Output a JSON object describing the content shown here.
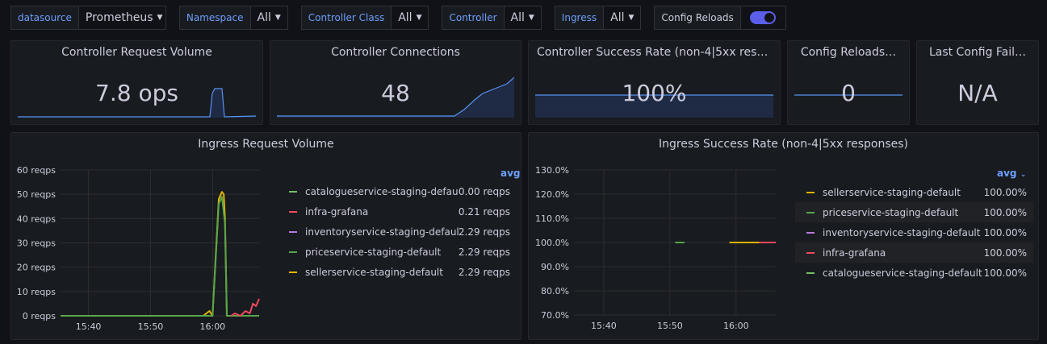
{
  "variables": [
    {
      "label": "datasource",
      "value": "Prometheus"
    },
    {
      "label": "Namespace",
      "value": "All"
    },
    {
      "label": "Controller Class",
      "value": "All"
    },
    {
      "label": "Controller",
      "value": "All"
    },
    {
      "label": "Ingress",
      "value": "All"
    }
  ],
  "config_reloads_toggle": {
    "label": "Config Reloads",
    "on": true
  },
  "stats": [
    {
      "title": "Controller Request Volume",
      "value": "7.8 ops"
    },
    {
      "title": "Controller Connections",
      "value": "48"
    },
    {
      "title": "Controller Success Rate (non-4|5xx respo…",
      "value": "100%"
    },
    {
      "title": "Config Reloads…",
      "value": "0"
    },
    {
      "title": "Last Config Fail…",
      "value": "N/A"
    }
  ],
  "request_volume": {
    "title": "Ingress Request Volume",
    "legend_header": "avg",
    "legend": [
      {
        "name": "catalogueservice-staging-default",
        "value": "0.00 reqps",
        "color": "#73bf69"
      },
      {
        "name": "infra-grafana",
        "value": "0.21 reqps",
        "color": "#f2495c"
      },
      {
        "name": "inventoryservice-staging-default",
        "value": "2.29 reqps",
        "color": "#b877d9"
      },
      {
        "name": "priceservice-staging-default",
        "value": "2.29 reqps",
        "color": "#56a64b"
      },
      {
        "name": "sellerservice-staging-default",
        "value": "2.29 reqps",
        "color": "#e0b400"
      }
    ]
  },
  "success_rate": {
    "title": "Ingress Success Rate (non-4|5xx responses)",
    "legend_header": "avg",
    "legend": [
      {
        "name": "sellerservice-staging-default",
        "value": "100.00%",
        "color": "#e0b400"
      },
      {
        "name": "priceservice-staging-default",
        "value": "100.00%",
        "color": "#56a64b"
      },
      {
        "name": "inventoryservice-staging-default",
        "value": "100.00%",
        "color": "#b877d9"
      },
      {
        "name": "infra-grafana",
        "value": "100.00%",
        "color": "#f2495c"
      },
      {
        "name": "catalogueservice-staging-default",
        "value": "100.00%",
        "color": "#73bf69"
      }
    ]
  },
  "chart_data": [
    {
      "type": "line",
      "title": "Ingress Request Volume",
      "ylim": [
        0,
        60
      ],
      "yticks": [
        "0 reqps",
        "10 reqps",
        "20 reqps",
        "30 reqps",
        "40 reqps",
        "50 reqps",
        "60 reqps"
      ],
      "yvalues": [
        0,
        10,
        20,
        30,
        40,
        50,
        60
      ],
      "xticks": [
        "15:40",
        "15:50",
        "16:00"
      ],
      "xtick_min": [
        -20,
        -10,
        0
      ],
      "xlim_min": [
        -24.5,
        7.5
      ],
      "series": [
        {
          "name": "sellerservice-staging-default",
          "color": "#e0b400",
          "x": [
            -24.5,
            -1.5,
            -1.0,
            -0.5,
            0.0,
            1.0,
            1.5,
            1.8,
            2.0,
            2.3,
            2.6,
            3.0,
            7.5
          ],
          "y": [
            0,
            0,
            1,
            2,
            0,
            48,
            51,
            50,
            40,
            0,
            0,
            0,
            0
          ]
        },
        {
          "name": "priceservice-staging-default",
          "color": "#56a64b",
          "x": [
            -24.5,
            0.0,
            1.0,
            1.5,
            2.0,
            2.3,
            7.5
          ],
          "y": [
            0,
            0,
            46,
            49,
            38,
            0,
            0
          ]
        },
        {
          "name": "infra-grafana",
          "color": "#f2495c",
          "x": [
            3.0,
            3.6,
            4.5,
            5.3,
            6.0,
            6.5,
            7.0,
            7.5
          ],
          "y": [
            0,
            1,
            0,
            2,
            1,
            5,
            4,
            7
          ]
        }
      ]
    },
    {
      "type": "line",
      "title": "Ingress Success Rate (non-4|5xx responses)",
      "ylim": [
        70,
        130
      ],
      "yticks": [
        "70.0%",
        "80.0%",
        "90.0%",
        "100.0%",
        "110.0%",
        "120.0%",
        "130.0%"
      ],
      "yvalues": [
        70,
        80,
        90,
        100,
        110,
        120,
        130
      ],
      "xticks": [
        "15:40",
        "15:50",
        "16:00"
      ],
      "xtick_min": [
        -20,
        -10,
        0
      ],
      "xlim_min": [
        -24.5,
        6.0
      ],
      "series": [
        {
          "name": "priceservice-staging-default",
          "color": "#56a64b",
          "x": [
            -9.2,
            -7.8
          ],
          "y": [
            100,
            100
          ]
        },
        {
          "name": "sellerservice-staging-default",
          "color": "#e0b400",
          "x": [
            -1.0,
            3.5
          ],
          "y": [
            100,
            100
          ]
        },
        {
          "name": "infra-grafana",
          "color": "#f2495c",
          "x": [
            3.5,
            6.0
          ],
          "y": [
            100,
            100
          ]
        }
      ]
    }
  ]
}
